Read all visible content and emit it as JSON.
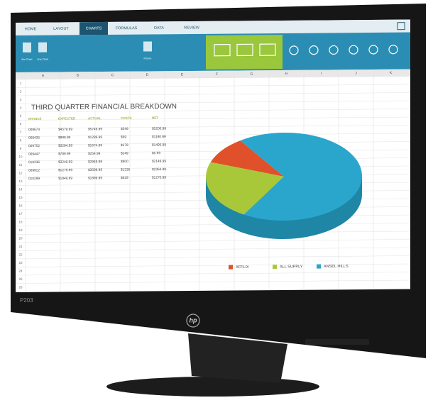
{
  "tabs": [
    "HOME",
    "LAYOUT",
    "CHARTS",
    "FORMULAS",
    "DATA",
    "REVIEW"
  ],
  "ribbon_labels": [
    "Bar Chart",
    "Line Chart",
    "Picture"
  ],
  "columns": [
    "A",
    "B",
    "C",
    "D",
    "E",
    "F",
    "G",
    "H",
    "I",
    "J",
    "K"
  ],
  "row_numbers": [
    1,
    2,
    3,
    4,
    5,
    6,
    7,
    8,
    9,
    10,
    11,
    12,
    13,
    14,
    15,
    16,
    17,
    18,
    19,
    20,
    21,
    22,
    23,
    24,
    25,
    26
  ],
  "sheet": {
    "title": "THIRD QUARTER FINANCIAL BREAKDOWN",
    "headers": [
      "INVOICE",
      "EXPECTED",
      "ACTUAL",
      "COSTS",
      "NET"
    ],
    "rows": [
      [
        "008674",
        "$4579.99",
        "$5749.99",
        "$549",
        "$5200.99"
      ],
      [
        "008435",
        "$999.99",
        "$1289.99",
        "$99",
        "$1190.99"
      ],
      [
        "009752",
        "$3284.99",
        "$1674.99",
        "$179",
        "$1495.99"
      ],
      [
        "009447",
        "$789.99",
        "$254.99",
        "$249",
        "$5.99"
      ],
      [
        "010236",
        "$3249.99",
        "$2949.99",
        "$800",
        "$2149.99"
      ],
      [
        "009912",
        "$1279.99",
        "$3599.99",
        "$1235",
        "$2364.99"
      ],
      [
        "010289",
        "$1849.99",
        "$1899.99",
        "$629",
        "$1270.99"
      ]
    ]
  },
  "pie": {
    "slices": [
      {
        "name": "AFFLIX",
        "color": "#e0502a",
        "value": 10
      },
      {
        "name": "ALL SUPPLY",
        "color": "#a8c83a",
        "value": 22
      },
      {
        "name": "ANSEL HILLS",
        "color": "#2aa6cc",
        "value": 68
      }
    ]
  },
  "monitor": {
    "model": "P203",
    "brand": "hp"
  }
}
